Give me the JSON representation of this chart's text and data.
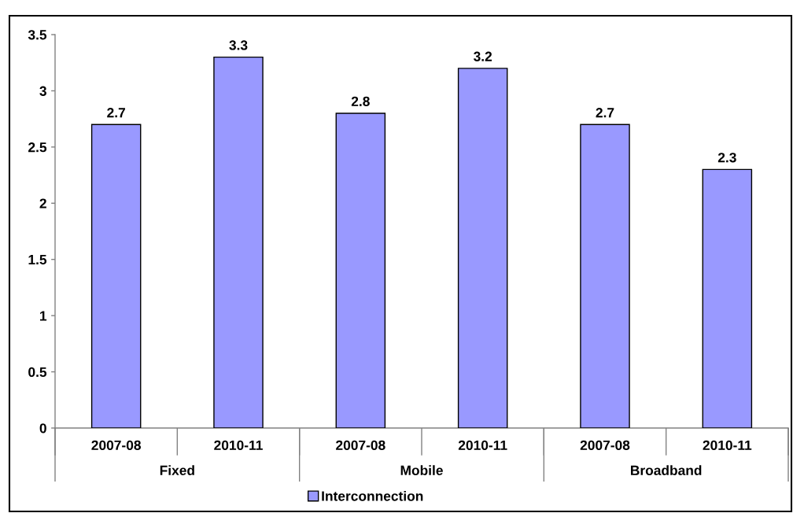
{
  "chart_data": {
    "type": "bar",
    "categories": [
      "2007-08",
      "2010-11",
      "2007-08",
      "2010-11",
      "2007-08",
      "2010-11"
    ],
    "series": [
      {
        "name": "Interconnection",
        "color": "#9999ff",
        "values": [
          2.7,
          3.3,
          2.8,
          3.2,
          2.7,
          2.3
        ]
      }
    ],
    "annotations": [
      "Fixed",
      "Mobile",
      "Broadband"
    ],
    "ylim": [
      0,
      3.5
    ],
    "yticks": [
      0,
      0.5,
      1,
      1.5,
      2,
      2.5,
      3,
      3.5
    ],
    "data_labels": true,
    "legend": "bottom"
  }
}
